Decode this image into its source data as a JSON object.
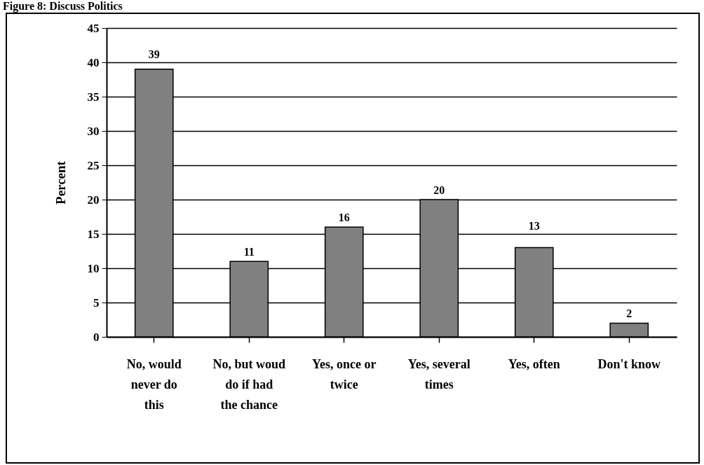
{
  "chart_data": {
    "type": "bar",
    "title": "Figure 8: Discuss Politics",
    "ylabel": "Percent",
    "categories": [
      "No, would never do this",
      "No, but woud do if had the chance",
      "Yes, once or twice",
      "Yes, several times",
      "Yes, often",
      "Don't know"
    ],
    "values": [
      39,
      11,
      16,
      20,
      13,
      2
    ],
    "color": "#808080",
    "ylim": [
      0,
      45
    ],
    "yticks": [
      0,
      5,
      10,
      15,
      20,
      25,
      30,
      35,
      40,
      45
    ],
    "grid": "y",
    "data_labels": true
  }
}
